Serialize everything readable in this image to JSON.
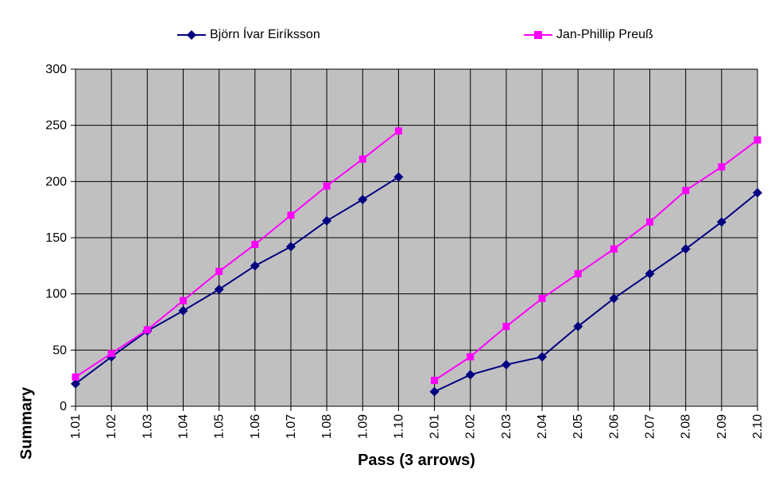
{
  "chart_data": {
    "type": "line",
    "title": "",
    "xlabel": "Pass (3 arrows)",
    "ylabel": "Summary",
    "ylim": [
      0,
      300
    ],
    "ytick_step": 50,
    "grid": true,
    "legend_position": "top",
    "plot_bg_color": "#C0C0C0",
    "grid_color": "#000000",
    "plot_border_color": "#808080",
    "axis_color": "#000000",
    "categories": [
      "1.01",
      "1.02",
      "1.03",
      "1.04",
      "1.05",
      "1.06",
      "1.07",
      "1.08",
      "1.09",
      "1.10",
      "2.01",
      "2.02",
      "2.03",
      "2.04",
      "2.05",
      "2.06",
      "2.07",
      "2.08",
      "2.09",
      "2.10"
    ],
    "gap_after_index": 9,
    "series": [
      {
        "name": "Björn Ívar Eiríksson",
        "color": "#000080",
        "marker": "diamond",
        "values": [
          20,
          44,
          67,
          85,
          104,
          125,
          142,
          165,
          184,
          204,
          13,
          28,
          37,
          44,
          71,
          96,
          118,
          140,
          164,
          190
        ]
      },
      {
        "name": "Jan-Phillip Preuß",
        "color": "#FF00FF",
        "marker": "square",
        "values": [
          26,
          47,
          68,
          94,
          120,
          144,
          170,
          196,
          220,
          245,
          23,
          44,
          71,
          96,
          118,
          140,
          164,
          192,
          213,
          237
        ]
      }
    ]
  }
}
